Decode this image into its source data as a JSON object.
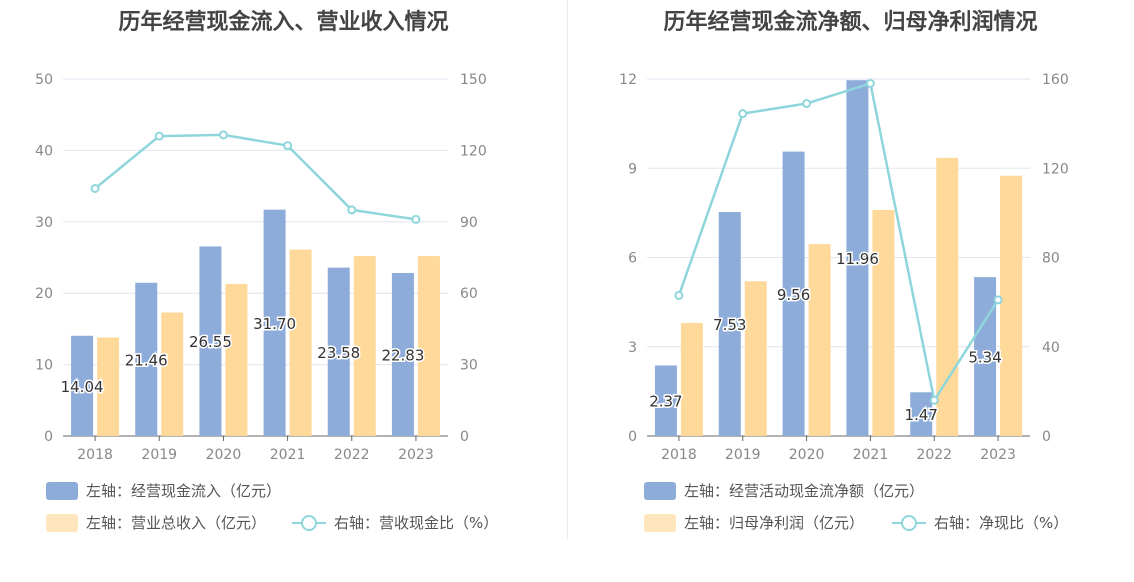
{
  "chart_data": [
    {
      "type": "bar",
      "title": "历年经营现金流入、营业收入情况",
      "categories": [
        "2018",
        "2019",
        "2020",
        "2021",
        "2022",
        "2023"
      ],
      "ylim_left": [
        0,
        50
      ],
      "yticks_left": [
        "0",
        "10",
        "20",
        "30",
        "40",
        "50"
      ],
      "ylim_right": [
        0,
        150
      ],
      "yticks_right": [
        "0",
        "30",
        "60",
        "90",
        "120",
        "150"
      ],
      "grid": true,
      "legend_position": "bottom",
      "series": [
        {
          "name": "左轴：经营现金流入（亿元）",
          "kind": "bar",
          "axis": "left",
          "color": "#8eacd9",
          "values": [
            14.04,
            21.46,
            26.55,
            31.7,
            23.58,
            22.83
          ],
          "labels": [
            "14.04",
            "21.46",
            "26.55",
            "31.70",
            "23.58",
            "22.83"
          ]
        },
        {
          "name": "左轴：营业总收入（亿元）",
          "kind": "bar",
          "axis": "left",
          "color": "#ffd99a",
          "values": [
            13.8,
            17.3,
            21.3,
            26.1,
            25.2,
            25.2
          ]
        },
        {
          "name": "右轴：营收现金比（%）",
          "kind": "line",
          "axis": "right",
          "color": "#8fd6dc",
          "values": [
            104,
            126,
            126.5,
            122,
            95,
            91
          ]
        }
      ]
    },
    {
      "type": "bar",
      "title": "历年经营现金流净额、归母净利润情况",
      "categories": [
        "2018",
        "2019",
        "2020",
        "2021",
        "2022",
        "2023"
      ],
      "ylim_left": [
        0,
        12
      ],
      "yticks_left": [
        "0",
        "3",
        "6",
        "9",
        "12"
      ],
      "ylim_right": [
        0,
        160
      ],
      "yticks_right": [
        "0",
        "40",
        "80",
        "120",
        "160"
      ],
      "grid": true,
      "legend_position": "bottom",
      "series": [
        {
          "name": "左轴：经营活动现金流净额（亿元）",
          "kind": "bar",
          "axis": "left",
          "color": "#8eacd9",
          "values": [
            2.37,
            7.53,
            9.56,
            11.96,
            1.47,
            5.34
          ],
          "labels": [
            "2.37",
            "7.53",
            "9.56",
            "11.96",
            "1.47",
            "5.34"
          ]
        },
        {
          "name": "左轴：归母净利润（亿元）",
          "kind": "bar",
          "axis": "left",
          "color": "#ffd99a",
          "values": [
            3.8,
            5.2,
            6.45,
            7.6,
            9.35,
            8.75
          ]
        },
        {
          "name": "右轴：净现比（%）",
          "kind": "line",
          "axis": "right",
          "color": "#8fd6dc",
          "values": [
            63,
            144.5,
            149,
            158,
            16,
            61
          ]
        }
      ]
    }
  ]
}
